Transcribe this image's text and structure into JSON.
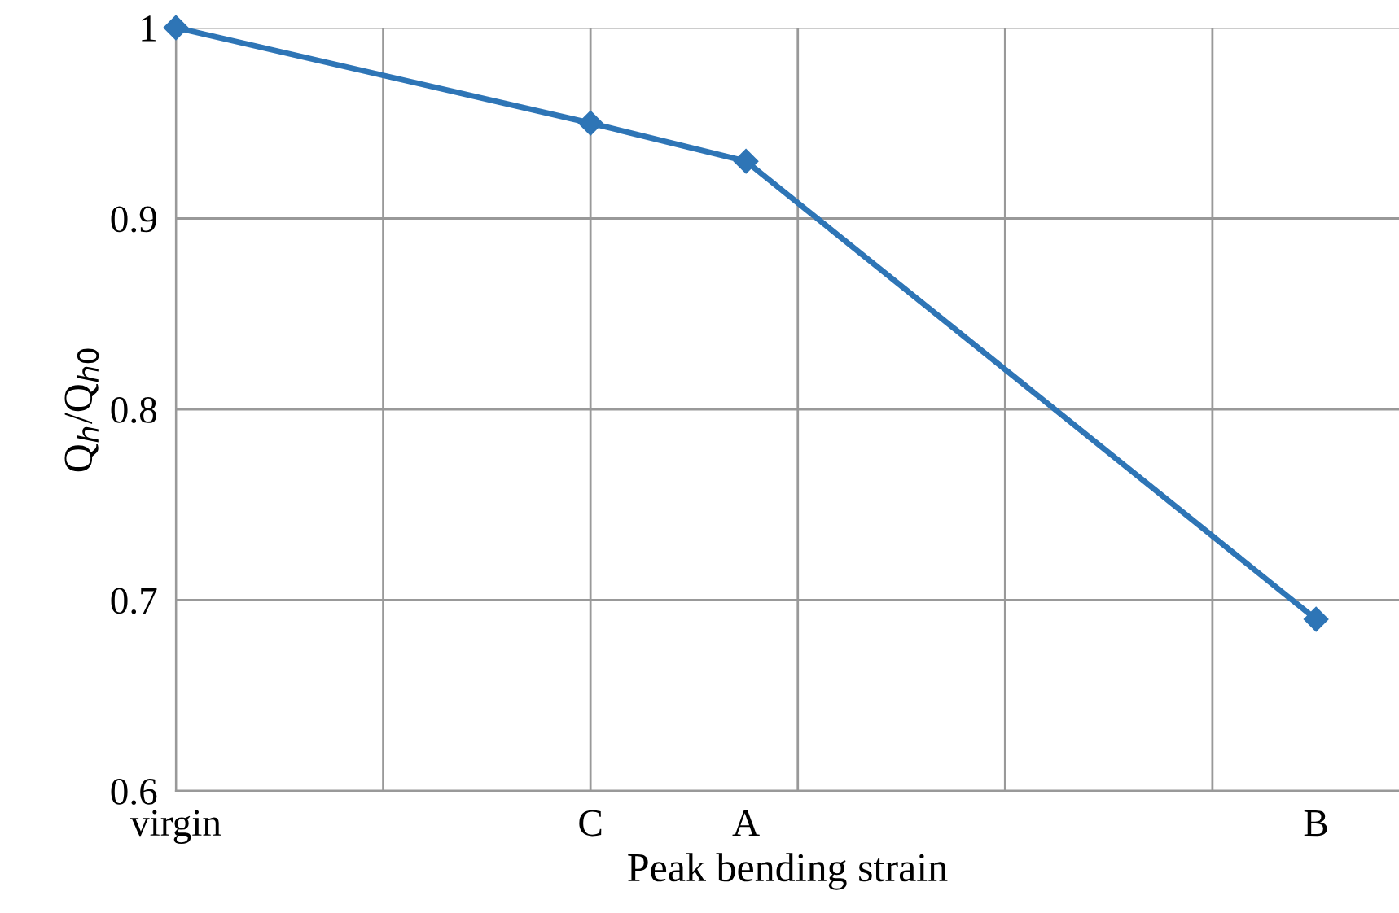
{
  "chart_data": {
    "type": "line",
    "xlabel": "Peak bending strain",
    "ylabel": "Q$_{h}$/Q$_{h0}$",
    "categories": [
      "virgin",
      null,
      null,
      null,
      null,
      null,
      null,
      null,
      "C",
      null,
      null,
      "A",
      null,
      null,
      null,
      null,
      null,
      null,
      null,
      null,
      null,
      null,
      "B",
      null
    ],
    "series": [
      {
        "color": "#2e75b6",
        "values": [
          1.0,
          null,
          null,
          null,
          null,
          null,
          null,
          null,
          0.95,
          null,
          null,
          0.93,
          null,
          null,
          null,
          null,
          null,
          null,
          null,
          null,
          null,
          null,
          0.69,
          null
        ]
      }
    ],
    "marker": "diamond",
    "line_style": "solid",
    "grid": true,
    "legend": false,
    "ylim": [
      0.6,
      1
    ],
    "yticks": [
      0.6,
      0.7,
      0.8,
      0.9,
      1
    ]
  }
}
